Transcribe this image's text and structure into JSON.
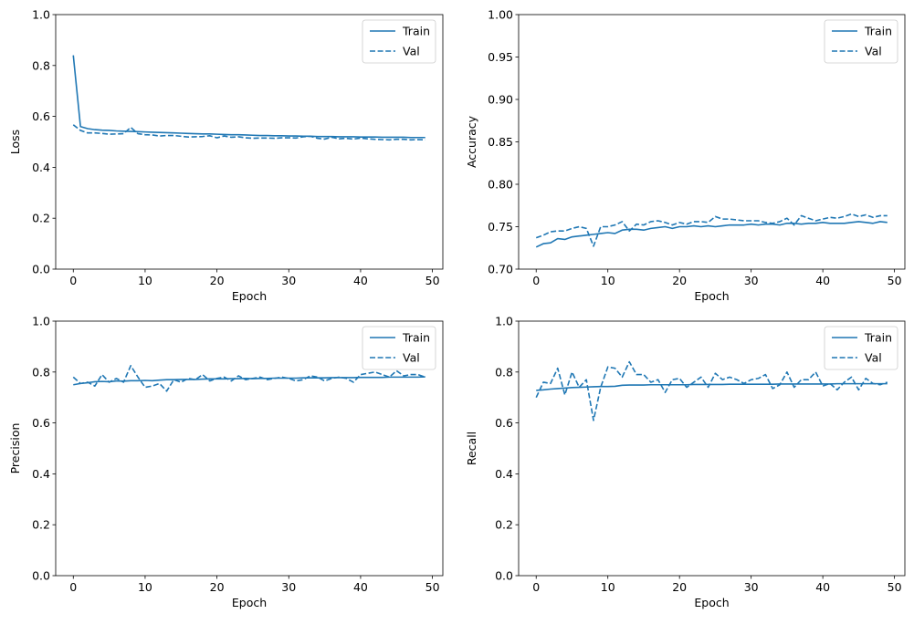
{
  "colors": {
    "series": "#1f77b4",
    "axes": "#000000",
    "legend_border": "#cccccc",
    "background": "#ffffff"
  },
  "chart_data": [
    {
      "type": "line",
      "xlabel": "Epoch",
      "ylabel": "Loss",
      "xlim": [
        -2.45,
        51.45
      ],
      "ylim": [
        0,
        1
      ],
      "xticks": [
        0,
        10,
        20,
        30,
        40,
        50
      ],
      "xtick_labels": [
        "0",
        "10",
        "20",
        "30",
        "40",
        "50"
      ],
      "yticks": [
        0,
        0.2,
        0.4,
        0.6,
        0.8,
        1.0
      ],
      "ytick_labels": [
        "0.0",
        "0.2",
        "0.4",
        "0.6",
        "0.8",
        "1.0"
      ],
      "legend_placement": "upper-right",
      "grid": false,
      "series": [
        {
          "name": "Train",
          "style": "solid",
          "values": [
            0.84,
            0.56,
            0.552,
            0.548,
            0.546,
            0.545,
            0.543,
            0.542,
            0.541,
            0.54,
            0.539,
            0.538,
            0.537,
            0.536,
            0.535,
            0.534,
            0.533,
            0.532,
            0.531,
            0.531,
            0.53,
            0.529,
            0.528,
            0.528,
            0.527,
            0.526,
            0.525,
            0.525,
            0.524,
            0.524,
            0.523,
            0.523,
            0.522,
            0.522,
            0.521,
            0.521,
            0.521,
            0.52,
            0.52,
            0.52,
            0.519,
            0.519,
            0.519,
            0.518,
            0.518,
            0.518,
            0.518,
            0.517,
            0.517,
            0.517
          ]
        },
        {
          "name": "Val",
          "style": "dashed",
          "values": [
            0.567,
            0.545,
            0.535,
            0.535,
            0.533,
            0.53,
            0.531,
            0.532,
            0.557,
            0.532,
            0.528,
            0.527,
            0.523,
            0.525,
            0.525,
            0.522,
            0.519,
            0.52,
            0.521,
            0.524,
            0.516,
            0.523,
            0.518,
            0.52,
            0.516,
            0.514,
            0.515,
            0.515,
            0.514,
            0.516,
            0.516,
            0.515,
            0.52,
            0.522,
            0.514,
            0.511,
            0.518,
            0.512,
            0.514,
            0.511,
            0.515,
            0.512,
            0.51,
            0.509,
            0.508,
            0.51,
            0.51,
            0.508,
            0.509,
            0.508
          ]
        }
      ]
    },
    {
      "type": "line",
      "xlabel": "Epoch",
      "ylabel": "Accuracy",
      "xlim": [
        -2.45,
        51.45
      ],
      "ylim": [
        0.7,
        1.0
      ],
      "xticks": [
        0,
        10,
        20,
        30,
        40,
        50
      ],
      "xtick_labels": [
        "0",
        "10",
        "20",
        "30",
        "40",
        "50"
      ],
      "yticks": [
        0.7,
        0.75,
        0.8,
        0.85,
        0.9,
        0.95,
        1.0
      ],
      "ytick_labels": [
        "0.70",
        "0.75",
        "0.80",
        "0.85",
        "0.90",
        "0.95",
        "1.00"
      ],
      "legend_placement": "upper-right",
      "grid": false,
      "series": [
        {
          "name": "Train",
          "style": "solid",
          "values": [
            0.726,
            0.73,
            0.731,
            0.736,
            0.735,
            0.738,
            0.739,
            0.74,
            0.741,
            0.742,
            0.743,
            0.742,
            0.746,
            0.747,
            0.747,
            0.746,
            0.748,
            0.749,
            0.75,
            0.748,
            0.75,
            0.75,
            0.751,
            0.75,
            0.751,
            0.75,
            0.751,
            0.752,
            0.752,
            0.752,
            0.753,
            0.752,
            0.753,
            0.753,
            0.752,
            0.754,
            0.754,
            0.753,
            0.754,
            0.754,
            0.755,
            0.754,
            0.754,
            0.754,
            0.755,
            0.756,
            0.755,
            0.754,
            0.756,
            0.755
          ]
        },
        {
          "name": "Val",
          "style": "dashed",
          "values": [
            0.737,
            0.74,
            0.744,
            0.745,
            0.745,
            0.748,
            0.75,
            0.748,
            0.727,
            0.75,
            0.75,
            0.752,
            0.756,
            0.745,
            0.753,
            0.752,
            0.756,
            0.757,
            0.755,
            0.752,
            0.755,
            0.753,
            0.756,
            0.756,
            0.755,
            0.762,
            0.759,
            0.759,
            0.758,
            0.757,
            0.757,
            0.757,
            0.755,
            0.754,
            0.756,
            0.76,
            0.752,
            0.763,
            0.76,
            0.757,
            0.759,
            0.761,
            0.76,
            0.762,
            0.765,
            0.762,
            0.764,
            0.761,
            0.763,
            0.763
          ]
        }
      ]
    },
    {
      "type": "line",
      "xlabel": "Epoch",
      "ylabel": "Precision",
      "xlim": [
        -2.45,
        51.45
      ],
      "ylim": [
        0,
        1
      ],
      "xticks": [
        0,
        10,
        20,
        30,
        40,
        50
      ],
      "xtick_labels": [
        "0",
        "10",
        "20",
        "30",
        "40",
        "50"
      ],
      "yticks": [
        0,
        0.2,
        0.4,
        0.6,
        0.8,
        1.0
      ],
      "ytick_labels": [
        "0.0",
        "0.2",
        "0.4",
        "0.6",
        "0.8",
        "1.0"
      ],
      "legend_placement": "upper-right",
      "grid": false,
      "series": [
        {
          "name": "Train",
          "style": "solid",
          "values": [
            0.75,
            0.755,
            0.758,
            0.762,
            0.763,
            0.762,
            0.765,
            0.764,
            0.766,
            0.766,
            0.767,
            0.766,
            0.768,
            0.77,
            0.77,
            0.771,
            0.771,
            0.771,
            0.772,
            0.773,
            0.773,
            0.773,
            0.774,
            0.774,
            0.775,
            0.774,
            0.775,
            0.775,
            0.776,
            0.776,
            0.776,
            0.776,
            0.777,
            0.777,
            0.777,
            0.777,
            0.778,
            0.778,
            0.778,
            0.778,
            0.779,
            0.779,
            0.779,
            0.779,
            0.78,
            0.78,
            0.78,
            0.78,
            0.78,
            0.781
          ]
        },
        {
          "name": "Val",
          "style": "dashed",
          "values": [
            0.78,
            0.755,
            0.76,
            0.745,
            0.79,
            0.76,
            0.775,
            0.76,
            0.825,
            0.78,
            0.74,
            0.745,
            0.755,
            0.725,
            0.77,
            0.76,
            0.775,
            0.77,
            0.79,
            0.765,
            0.775,
            0.78,
            0.765,
            0.785,
            0.77,
            0.775,
            0.78,
            0.77,
            0.775,
            0.78,
            0.775,
            0.765,
            0.77,
            0.785,
            0.78,
            0.765,
            0.775,
            0.78,
            0.775,
            0.76,
            0.79,
            0.795,
            0.8,
            0.79,
            0.78,
            0.805,
            0.785,
            0.79,
            0.79,
            0.78
          ]
        }
      ]
    },
    {
      "type": "line",
      "xlabel": "Epoch",
      "ylabel": "Recall",
      "xlim": [
        -2.45,
        51.45
      ],
      "ylim": [
        0,
        1
      ],
      "xticks": [
        0,
        10,
        20,
        30,
        40,
        50
      ],
      "xtick_labels": [
        "0",
        "10",
        "20",
        "30",
        "40",
        "50"
      ],
      "yticks": [
        0,
        0.2,
        0.4,
        0.6,
        0.8,
        1.0
      ],
      "ytick_labels": [
        "0.0",
        "0.2",
        "0.4",
        "0.6",
        "0.8",
        "1.0"
      ],
      "legend_placement": "upper-right",
      "grid": false,
      "series": [
        {
          "name": "Train",
          "style": "solid",
          "values": [
            0.728,
            0.73,
            0.733,
            0.735,
            0.737,
            0.739,
            0.74,
            0.741,
            0.742,
            0.743,
            0.743,
            0.744,
            0.748,
            0.749,
            0.749,
            0.749,
            0.75,
            0.75,
            0.75,
            0.75,
            0.75,
            0.75,
            0.751,
            0.751,
            0.751,
            0.751,
            0.751,
            0.752,
            0.752,
            0.752,
            0.752,
            0.752,
            0.752,
            0.752,
            0.753,
            0.753,
            0.753,
            0.753,
            0.753,
            0.753,
            0.753,
            0.753,
            0.754,
            0.754,
            0.754,
            0.754,
            0.754,
            0.754,
            0.754,
            0.754
          ]
        },
        {
          "name": "Val",
          "style": "dashed",
          "values": [
            0.7,
            0.76,
            0.755,
            0.815,
            0.71,
            0.8,
            0.74,
            0.77,
            0.61,
            0.74,
            0.82,
            0.815,
            0.78,
            0.84,
            0.79,
            0.79,
            0.76,
            0.77,
            0.72,
            0.77,
            0.775,
            0.74,
            0.76,
            0.78,
            0.74,
            0.795,
            0.77,
            0.78,
            0.77,
            0.755,
            0.77,
            0.775,
            0.79,
            0.735,
            0.75,
            0.8,
            0.74,
            0.77,
            0.77,
            0.8,
            0.745,
            0.755,
            0.73,
            0.76,
            0.78,
            0.73,
            0.775,
            0.755,
            0.75,
            0.76
          ]
        }
      ]
    }
  ]
}
